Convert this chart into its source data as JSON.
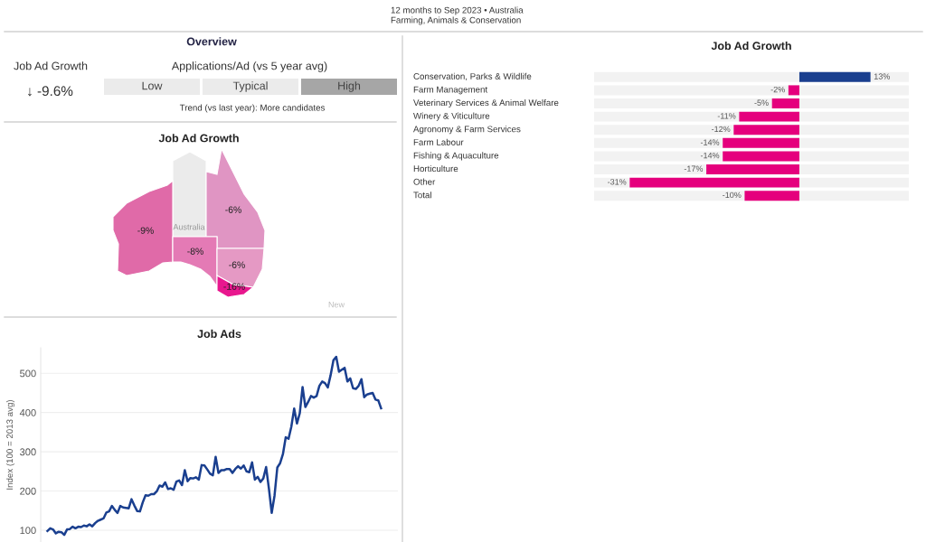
{
  "chart_data": [
    {
      "type": "other",
      "title": "Overview",
      "annotations": [
        "12 months to Sep 2023 • Australia",
        "Farming, Animals & Conservation",
        "Job Ad Growth",
        "↓ -9.6%",
        "Applications/Ad (vs 5 year avg)",
        "Trend (vs last year): More candidates"
      ],
      "categories": [
        "Low",
        "Typical",
        "High"
      ],
      "colors": [
        "#ebebeb",
        "#ebebeb",
        "#a6a6a6"
      ]
    },
    {
      "type": "other",
      "title": "Job Ad Growth",
      "categories": [
        null,
        null,
        null,
        null,
        null
      ],
      "values": [
        -6,
        -9,
        -8,
        -6,
        -16
      ],
      "value_labels": [
        "-6%",
        "-9%",
        "-8%",
        "-6%",
        "-16%"
      ],
      "colors": [
        "#e095c3",
        "#e06aa8",
        "#e47ab5",
        "#e599c4",
        "#e8178e"
      ],
      "annotations": [
        "Australia",
        "New"
      ]
    },
    {
      "type": "bar",
      "title": "Job Ad Growth",
      "orientation": "horizontal",
      "categories": [
        "Conservation, Parks & Wildlife",
        "Farm Management",
        "Veterinary Services & Animal Welfare",
        "Winery & Viticulture",
        "Agronomy & Farm Services",
        "Farm Labour",
        "Fishing & Aquaculture",
        "Horticulture",
        "Other",
        "Total"
      ],
      "values": [
        13,
        -2,
        -5,
        -11,
        -12,
        -14,
        -14,
        -17,
        -31,
        -10
      ],
      "value_labels": [
        "13%",
        "-2%",
        "-5%",
        "-11%",
        "-12%",
        "-14%",
        "-14%",
        "-17%",
        "-31%",
        "-10%"
      ],
      "colors": [
        "#1a3f8f",
        "#e5007d",
        "#e5007d",
        "#e5007d",
        "#e5007d",
        "#e5007d",
        "#e5007d",
        "#e5007d",
        "#e5007d",
        "#e5007d"
      ],
      "xlim": [
        -37.5,
        20
      ]
    },
    {
      "type": "line",
      "title": "Job Ads",
      "ylabel": "Index (100 = 2013 avg)",
      "ylim": [
        70,
        565
      ],
      "yticks": [
        100,
        200,
        300,
        400,
        500
      ],
      "grid": "y",
      "marker": "none",
      "line_style": "solid",
      "categories": [
        null,
        null,
        null,
        null,
        null,
        null,
        null,
        null,
        null,
        null,
        null,
        null,
        null,
        null,
        null,
        null,
        null,
        null,
        null,
        null,
        null,
        null,
        null,
        null,
        null,
        null,
        null,
        null,
        null,
        null,
        null,
        null,
        null,
        null,
        null,
        null,
        null,
        null,
        null,
        null,
        null,
        null,
        null,
        null,
        null,
        null,
        null,
        null,
        null,
        null,
        null,
        null,
        null,
        null,
        null,
        null,
        null,
        null,
        null,
        null,
        null,
        null,
        null,
        null,
        null,
        null,
        null,
        null,
        null,
        null,
        null,
        null,
        null,
        null,
        null,
        null,
        null,
        null,
        null,
        null,
        null,
        null,
        null,
        null,
        null,
        null,
        null,
        null,
        null,
        null,
        null,
        null,
        null,
        null,
        null,
        null,
        null,
        null,
        null,
        null,
        null,
        null,
        null,
        null,
        null,
        null,
        null,
        null,
        null,
        null,
        null,
        null,
        null,
        null,
        null,
        null,
        null,
        null,
        null,
        null
      ],
      "series": [
        {
          "color": "#1a3f8f",
          "values": [
            98,
            105,
            102,
            92,
            96,
            95,
            88,
            102,
            103,
            109,
            105,
            109,
            108,
            112,
            110,
            115,
            110,
            118,
            124,
            127,
            130,
            145,
            148,
            162,
            152,
            144,
            162,
            158,
            157,
            156,
            179,
            163,
            149,
            148,
            171,
            189,
            188,
            192,
            192,
            199,
            214,
            211,
            222,
            205,
            207,
            203,
            224,
            227,
            215,
            253,
            225,
            233,
            232,
            235,
            229,
            266,
            265,
            255,
            244,
            240,
            287,
            246,
            253,
            253,
            256,
            256,
            246,
            256,
            263,
            257,
            265,
            250,
            248,
            273,
            229,
            236,
            223,
            232,
            261,
            206,
            144,
            188,
            260,
            271,
            294,
            337,
            333,
            364,
            410,
            372,
            398,
            465,
            414,
            427,
            442,
            438,
            442,
            468,
            479,
            475,
            464,
            495,
            533,
            542,
            504,
            509,
            514,
            479,
            487,
            462,
            460,
            468,
            485,
            439,
            446,
            448,
            450,
            433,
            431,
            411
          ]
        }
      ]
    }
  ]
}
